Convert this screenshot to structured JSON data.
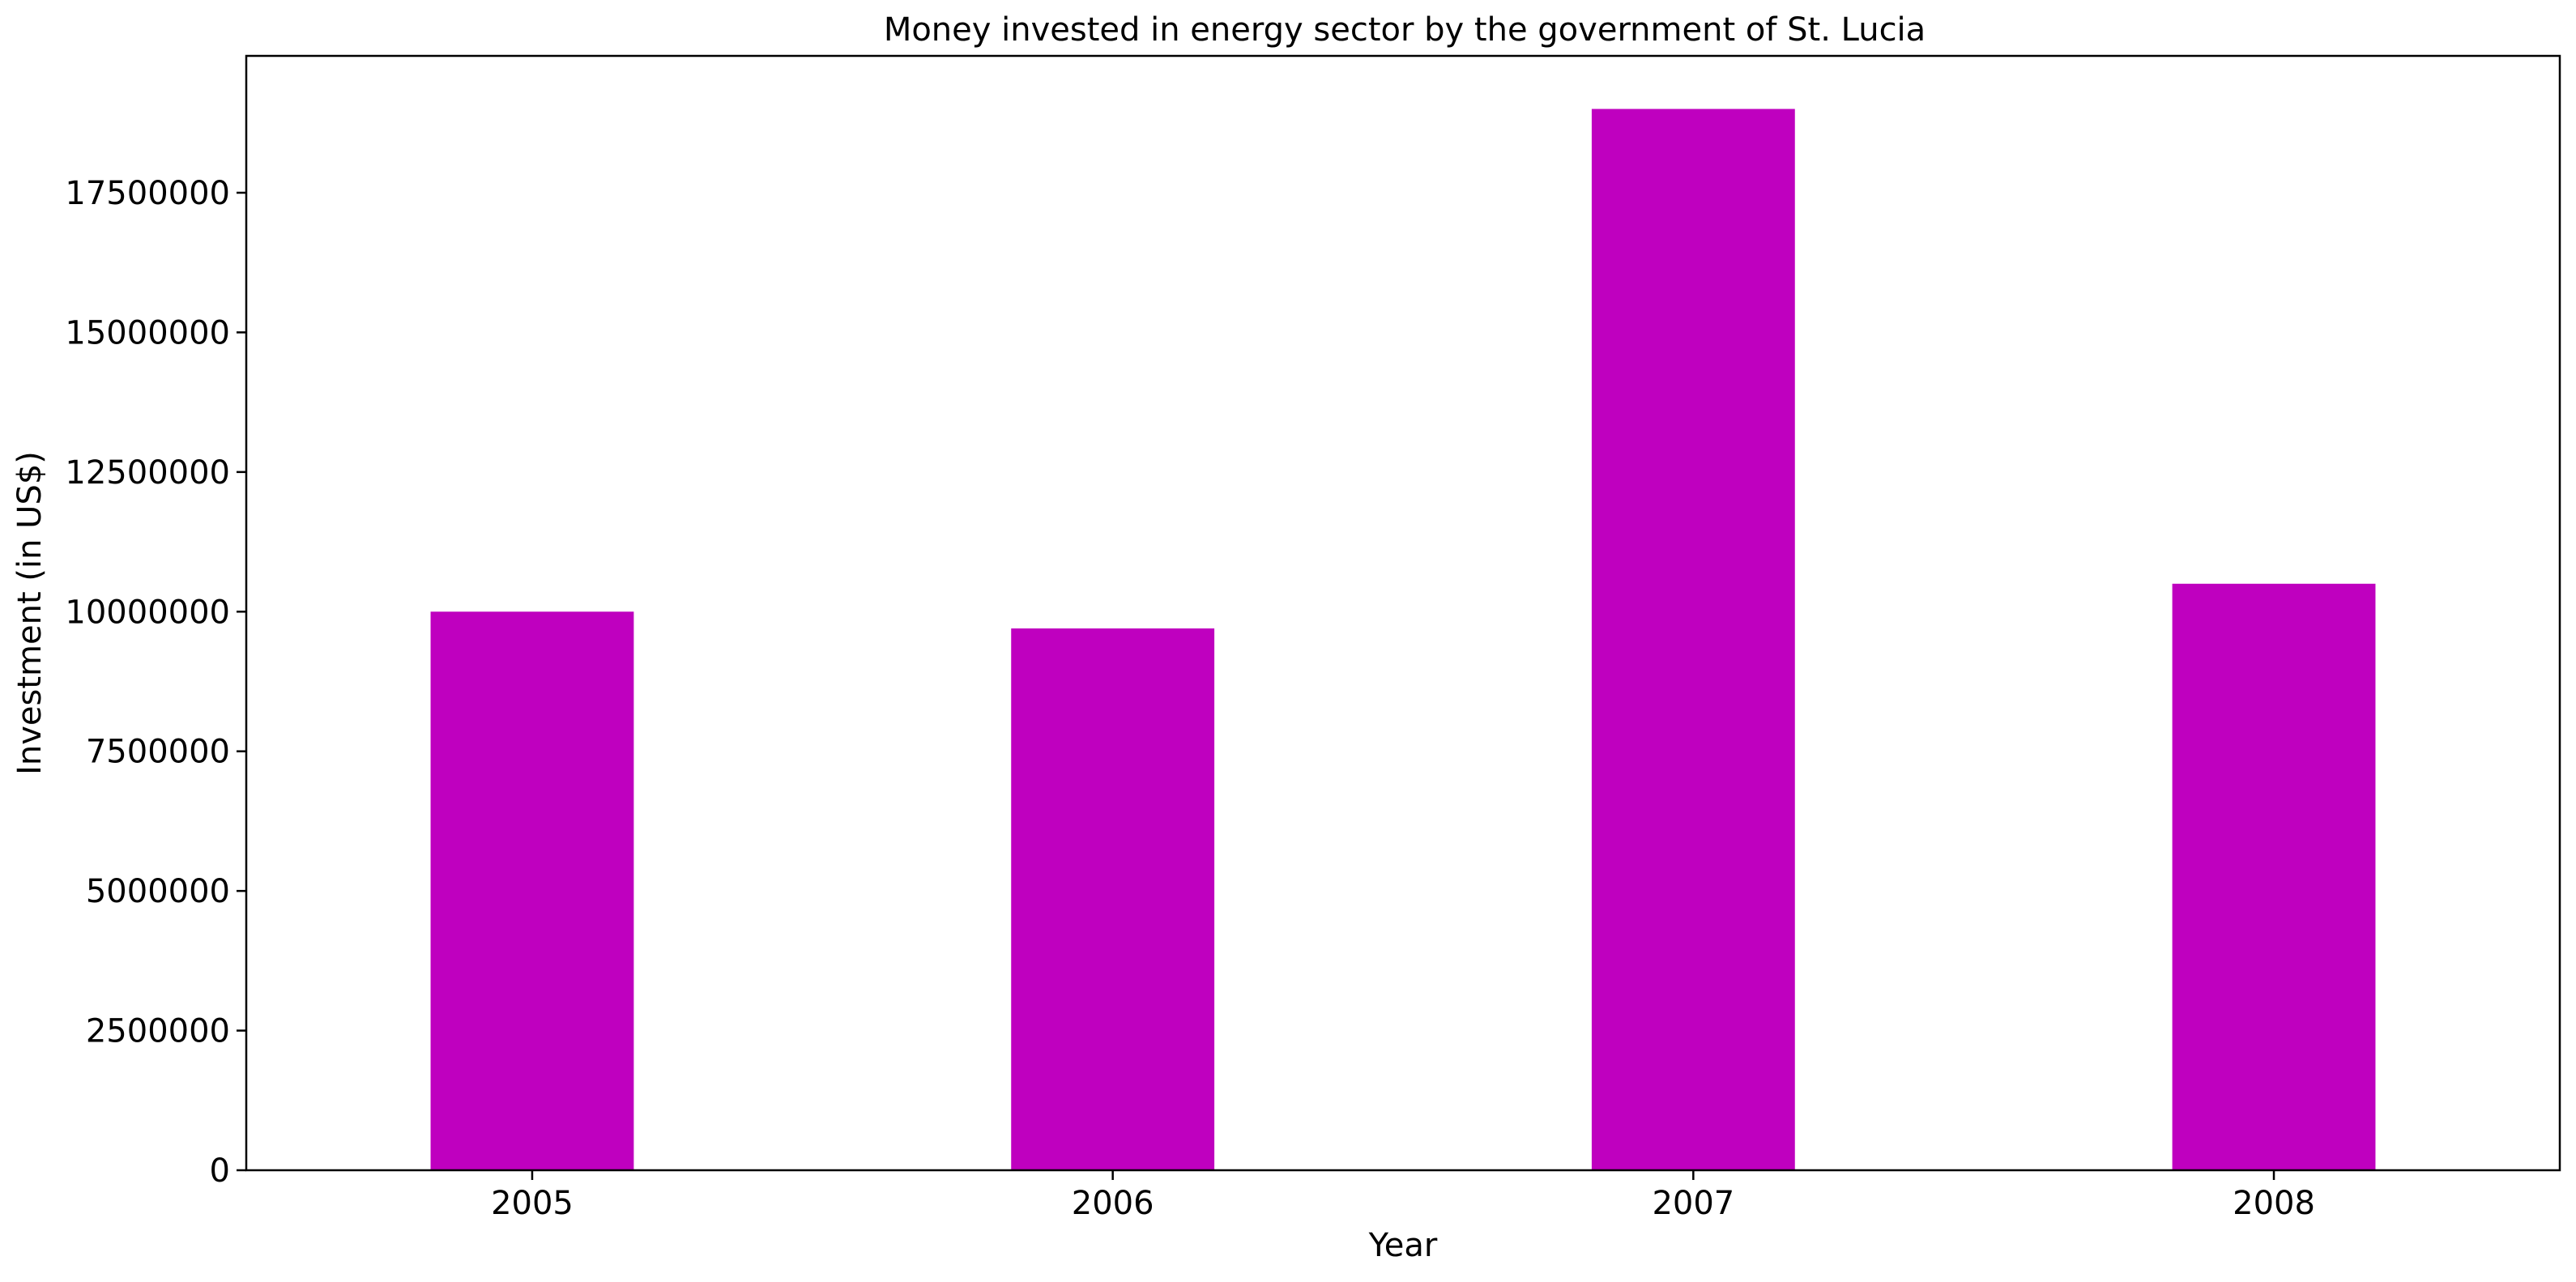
{
  "chart_data": {
    "type": "bar",
    "title": "Money invested in energy sector by the government of St. Lucia",
    "xlabel": "Year",
    "ylabel": "Investment (in US$)",
    "categories": [
      "2005",
      "2006",
      "2007",
      "2008"
    ],
    "values": [
      10000000,
      9700000,
      19000000,
      10500000
    ],
    "ylim": [
      0,
      19950000
    ],
    "yticks": [
      0,
      2500000,
      5000000,
      7500000,
      10000000,
      12500000,
      15000000,
      17500000
    ],
    "ytick_labels": [
      "0",
      "2500000",
      "5000000",
      "7500000",
      "10000000",
      "12500000",
      "15000000",
      "17500000"
    ],
    "bar_color": "#bf00bf",
    "grid": false,
    "legend": "none"
  }
}
